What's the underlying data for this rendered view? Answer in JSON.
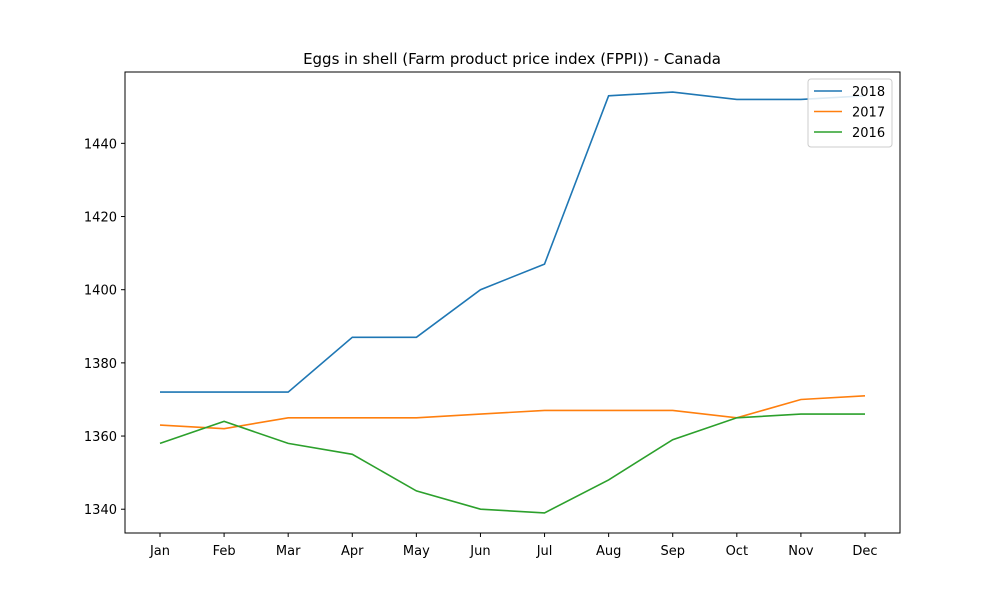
{
  "chart_data": {
    "type": "line",
    "title": "Eggs in shell (Farm product price index (FPPI)) - Canada",
    "xlabel": "",
    "ylabel": "",
    "categories": [
      "Jan",
      "Feb",
      "Mar",
      "Apr",
      "May",
      "Jun",
      "Jul",
      "Aug",
      "Sep",
      "Oct",
      "Nov",
      "Dec"
    ],
    "yticks": [
      1340,
      1360,
      1380,
      1400,
      1420,
      1440
    ],
    "ylim": [
      1333.5,
      1459.5
    ],
    "grid": false,
    "legend_position": "top-right",
    "series": [
      {
        "name": "2018",
        "color": "#1f77b4",
        "values": [
          1372,
          1372,
          1372,
          1387,
          1387,
          1400,
          1407,
          1453,
          1454,
          1452,
          1452,
          1453
        ]
      },
      {
        "name": "2017",
        "color": "#ff7f0e",
        "values": [
          1363,
          1362,
          1365,
          1365,
          1365,
          1366,
          1367,
          1367,
          1367,
          1365,
          1370,
          1371
        ]
      },
      {
        "name": "2016",
        "color": "#2ca02c",
        "values": [
          1358,
          1364,
          1358,
          1355,
          1345,
          1340,
          1339,
          1348,
          1359,
          1365,
          1366,
          1366
        ]
      }
    ]
  }
}
